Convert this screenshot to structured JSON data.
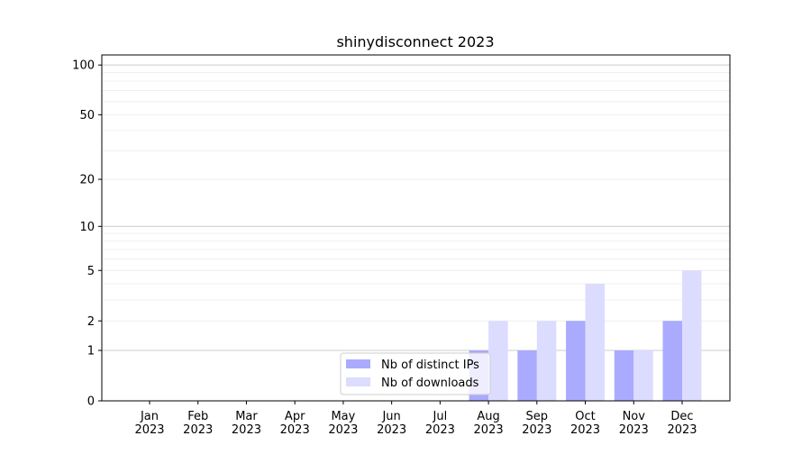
{
  "chart_data": {
    "type": "bar",
    "title": "shinydisconnect 2023",
    "categories": [
      "Jan\n2023",
      "Feb\n2023",
      "Mar\n2023",
      "Apr\n2023",
      "May\n2023",
      "Jun\n2023",
      "Jul\n2023",
      "Aug\n2023",
      "Sep\n2023",
      "Oct\n2023",
      "Nov\n2023",
      "Dec\n2023"
    ],
    "series": [
      {
        "name": "Nb of distinct IPs",
        "color": "#aaaaff",
        "values": [
          0,
          0,
          0,
          0,
          0,
          0,
          0,
          1,
          1,
          2,
          1,
          2
        ]
      },
      {
        "name": "Nb of downloads",
        "color": "#dcdcff",
        "values": [
          0,
          0,
          0,
          0,
          0,
          0,
          0,
          2,
          2,
          4,
          1,
          5
        ]
      }
    ],
    "yscale": "log(1+y)",
    "yticks": [
      0,
      1,
      2,
      5,
      10,
      20,
      50,
      100
    ],
    "ylim": [
      0,
      115
    ],
    "grid": true,
    "legend": "bottom-center",
    "xlabel": "",
    "ylabel": ""
  }
}
